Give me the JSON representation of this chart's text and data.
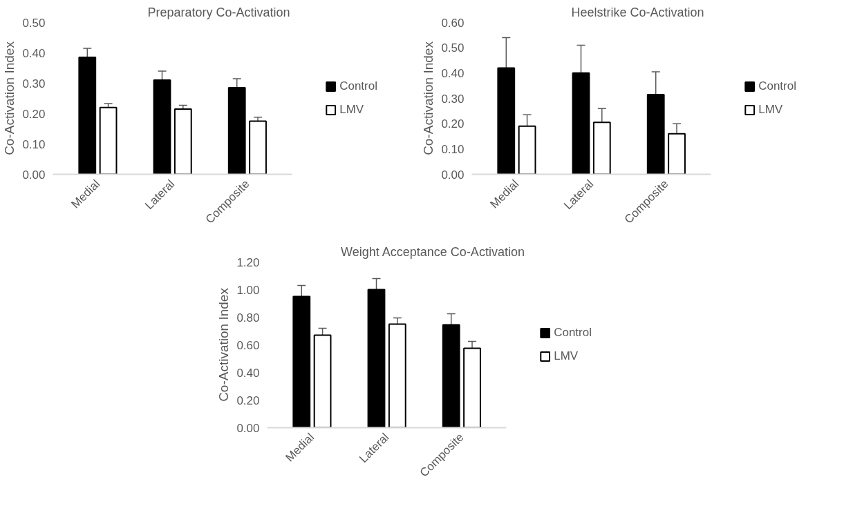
{
  "chart_data": [
    {
      "type": "bar",
      "title": "Preparatory Co-Activation",
      "ylabel": "Co-Activation Index",
      "categories": [
        "Medial",
        "Lateral",
        "Composite"
      ],
      "series": [
        {
          "name": "Control",
          "color": "#000000",
          "values": [
            0.385,
            0.31,
            0.285
          ],
          "errors": [
            0.03,
            0.03,
            0.03
          ]
        },
        {
          "name": "LMV",
          "color": "#ffffff",
          "values": [
            0.22,
            0.215,
            0.175
          ],
          "errors": [
            0.013,
            0.012,
            0.013
          ]
        }
      ],
      "ylim": [
        0,
        0.5
      ],
      "yticks": [
        {
          "value": 0,
          "label": "0.00"
        },
        {
          "value": 0.1,
          "label": "0.10"
        },
        {
          "value": 0.2,
          "label": "0.20"
        },
        {
          "value": 0.3,
          "label": "0.30"
        },
        {
          "value": 0.4,
          "label": "0.40"
        },
        {
          "value": 0.5,
          "label": "0.50"
        }
      ],
      "grid": false,
      "legend": "right"
    },
    {
      "type": "bar",
      "title": "Heelstrike Co-Activation",
      "ylabel": "Co-Activation Index",
      "categories": [
        "Medial",
        "Lateral",
        "Composite"
      ],
      "series": [
        {
          "name": "Control",
          "color": "#000000",
          "values": [
            0.42,
            0.4,
            0.315
          ],
          "errors": [
            0.12,
            0.11,
            0.09
          ]
        },
        {
          "name": "LMV",
          "color": "#ffffff",
          "values": [
            0.19,
            0.205,
            0.16
          ],
          "errors": [
            0.045,
            0.055,
            0.04
          ]
        }
      ],
      "ylim": [
        0,
        0.6
      ],
      "yticks": [
        {
          "value": 0,
          "label": "0.00"
        },
        {
          "value": 0.1,
          "label": "0.10"
        },
        {
          "value": 0.2,
          "label": "0.20"
        },
        {
          "value": 0.3,
          "label": "0.30"
        },
        {
          "value": 0.4,
          "label": "0.40"
        },
        {
          "value": 0.5,
          "label": "0.50"
        },
        {
          "value": 0.6,
          "label": "0.60"
        }
      ],
      "grid": false,
      "legend": "right"
    },
    {
      "type": "bar",
      "title": "Weight Acceptance Co-Activation",
      "ylabel": "Co-Activation Index",
      "categories": [
        "Medial",
        "Lateral",
        "Composite"
      ],
      "series": [
        {
          "name": "Control",
          "color": "#000000",
          "values": [
            0.95,
            1.0,
            0.745
          ],
          "errors": [
            0.08,
            0.08,
            0.08
          ]
        },
        {
          "name": "LMV",
          "color": "#ffffff",
          "values": [
            0.67,
            0.75,
            0.575
          ],
          "errors": [
            0.05,
            0.045,
            0.05
          ]
        }
      ],
      "ylim": [
        0,
        1.2
      ],
      "yticks": [
        {
          "value": 0,
          "label": "0.00"
        },
        {
          "value": 0.2,
          "label": "0.20"
        },
        {
          "value": 0.4,
          "label": "0.40"
        },
        {
          "value": 0.6,
          "label": "0.60"
        },
        {
          "value": 0.8,
          "label": "0.80"
        },
        {
          "value": 1.0,
          "label": "1.00"
        },
        {
          "value": 1.2,
          "label": "1.20"
        }
      ],
      "grid": false,
      "legend": "right"
    }
  ]
}
